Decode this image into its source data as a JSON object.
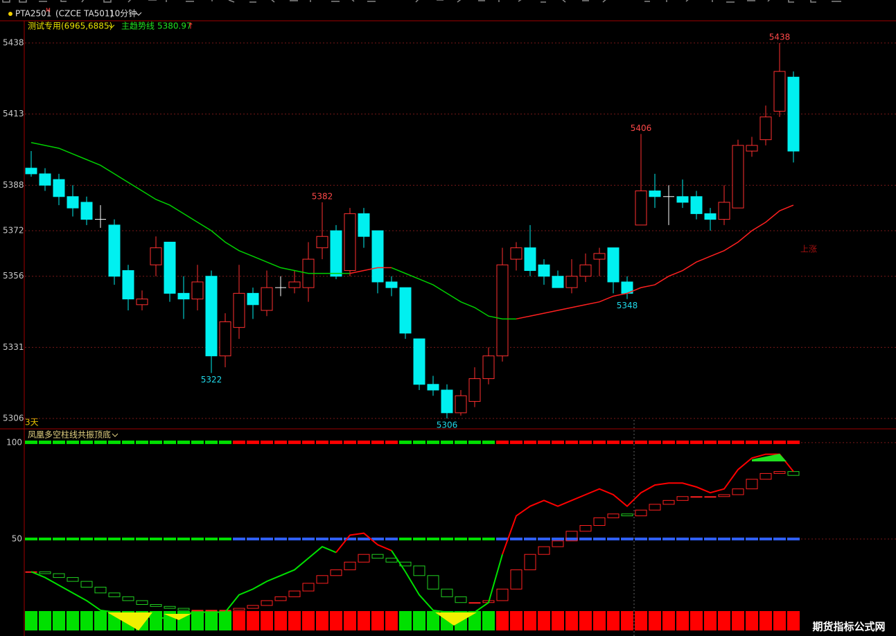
{
  "header": {
    "symbol": "PTA2501",
    "symbol_sup": "M",
    "exchange": "(CZCE TA501)",
    "period": "10分钟"
  },
  "chart_data": [
    {
      "type": "candlestick",
      "legend": {
        "indicator": "测试专用(6965,6885)",
        "trend_name": "主趋势线",
        "trend_value": 5380.97,
        "trend_arrow": "↑"
      },
      "open": [
        5394,
        5392,
        5390,
        5384,
        5382,
        5376,
        5374,
        5358,
        5346,
        5360,
        5368,
        5350,
        5348,
        5356,
        5328,
        5338,
        5350,
        5344,
        5352,
        5352,
        5352,
        5366,
        5372,
        5358,
        5378,
        5372,
        5354,
        5352,
        5334,
        5318,
        5316,
        5308,
        5312,
        5320,
        5328,
        5362,
        5366,
        5360,
        5356,
        5352,
        5356,
        5362,
        5366,
        5354,
        5374,
        5386,
        5384,
        5384,
        5384,
        5378,
        5376,
        5380,
        5400,
        5404,
        5414,
        5426
      ],
      "high": [
        5400,
        5394,
        5392,
        5388,
        5384,
        5381,
        5376,
        5360,
        5351,
        5370,
        5368,
        5356,
        5360,
        5358,
        5343,
        5360,
        5352,
        5358,
        5356,
        5358,
        5368,
        5382,
        5374,
        5380,
        5380,
        5372,
        5356,
        5352,
        5334,
        5321,
        5318,
        5316,
        5324,
        5331,
        5366,
        5368,
        5374,
        5362,
        5358,
        5362,
        5364,
        5366,
        5366,
        5356,
        5406,
        5392,
        5388,
        5390,
        5386,
        5380,
        5388,
        5404,
        5405,
        5416,
        5438,
        5428
      ],
      "low": [
        5391,
        5386,
        5381,
        5377,
        5374,
        5373,
        5353,
        5344,
        5344,
        5356,
        5347,
        5341,
        5344,
        5322,
        5324,
        5334,
        5341,
        5342,
        5349,
        5350,
        5347,
        5362,
        5355,
        5356,
        5366,
        5350,
        5349,
        5334,
        5316,
        5314,
        5306,
        5307,
        5310,
        5318,
        5326,
        5358,
        5356,
        5353,
        5352,
        5350,
        5354,
        5356,
        5350,
        5348,
        5374,
        5380,
        5374,
        5380,
        5376,
        5372,
        5374,
        5380,
        5398,
        5402,
        5412,
        5396
      ],
      "close": [
        5392,
        5388,
        5384,
        5380,
        5376,
        5376,
        5356,
        5348,
        5348,
        5366,
        5350,
        5348,
        5354,
        5328,
        5340,
        5350,
        5346,
        5352,
        5352,
        5354,
        5362,
        5370,
        5356,
        5378,
        5370,
        5354,
        5352,
        5336,
        5318,
        5316,
        5308,
        5314,
        5320,
        5328,
        5360,
        5366,
        5358,
        5356,
        5352,
        5356,
        5360,
        5364,
        5354,
        5350,
        5386,
        5384,
        5384,
        5382,
        5378,
        5376,
        5382,
        5402,
        5402,
        5412,
        5428,
        5400
      ],
      "up_color": "#ff3030",
      "down_color": "#00f0f0",
      "doji_color": "#ffffff",
      "ylim": [
        5302.6,
        5445.8
      ],
      "yticks": [
        5438,
        5413,
        5388,
        5372,
        5356,
        5331,
        5306
      ],
      "grid": true,
      "trend_line": {
        "values": [
          5403,
          5402,
          5401,
          5399,
          5397,
          5395,
          5392,
          5389,
          5386,
          5383,
          5381,
          5378,
          5375,
          5372,
          5368,
          5365,
          5363,
          5361,
          5359,
          5358,
          5357,
          5357,
          5357,
          5357,
          5358,
          5359,
          5359,
          5357,
          5355,
          5353,
          5350,
          5347,
          5345,
          5342,
          5341,
          5341,
          5342,
          5343,
          5344,
          5345,
          5346,
          5347,
          5349,
          5350,
          5352,
          5353,
          5356,
          5358,
          5361,
          5363,
          5365,
          5368,
          5372,
          5375,
          5379,
          5381
        ],
        "up_color": "#ff2020",
        "down_color": "#00d000"
      },
      "annotations": [
        {
          "value": 5438,
          "color": "#ff4848"
        },
        {
          "value": 5406,
          "color": "#ff4848"
        },
        {
          "value": 5382,
          "color": "#ff4848"
        },
        {
          "value": 5322,
          "color": "#20d8e8"
        },
        {
          "value": 5306,
          "color": "#20d8e8"
        },
        {
          "value": 5348,
          "color": "#20d8e8"
        }
      ],
      "period_note": "3天",
      "trend_note": "上涨"
    },
    {
      "type": "oscillator",
      "title": "凤凰多空柱线共振顶底",
      "ylim": [
        0,
        106.8
      ],
      "yticks": [
        100,
        50
      ],
      "line": {
        "values": [
          33,
          30,
          26,
          22,
          18,
          13,
          12,
          11,
          10,
          9,
          9,
          11,
          12,
          12,
          12,
          21,
          24,
          28,
          31,
          34,
          40,
          46,
          43,
          52,
          53,
          47,
          44,
          33,
          21,
          13,
          12,
          12,
          12,
          17,
          42,
          62,
          67,
          70,
          67,
          70,
          73,
          76,
          73,
          67,
          74,
          78,
          79,
          79,
          77,
          74,
          76,
          86,
          92,
          94,
          94,
          85
        ],
        "colors": [
          "#00e000",
          "#00e000",
          "#00e000",
          "#00e000",
          "#00e000",
          "#00e000",
          "#00e000",
          "#00e000",
          "#00e000",
          "#00e000",
          "#00e000",
          "#00e000",
          "#00e000",
          "#00e000",
          "#00e000",
          "#00e000",
          "#00e000",
          "#00e000",
          "#00e000",
          "#00e000",
          "#00e000",
          "#00e000",
          "#00e000",
          "#ff0000",
          "#ff0000",
          "#ff0000",
          "#ff0000",
          "#00e000",
          "#00e000",
          "#00e000",
          "#00e000",
          "#00e000",
          "#00e000",
          "#00e000",
          "#00e000",
          "#ff0000",
          "#ff0000",
          "#ff0000",
          "#ff0000",
          "#ff0000",
          "#ff0000",
          "#ff0000",
          "#ff0000",
          "#ff0000",
          "#ff0000",
          "#ff0000",
          "#ff0000",
          "#ff0000",
          "#ff0000",
          "#ff0000",
          "#ff0000",
          "#ff0000",
          "#ff0000",
          "#ff0000",
          "#ff0000",
          "#ff0000"
        ]
      },
      "boxes": {
        "values": [
          33,
          32,
          30,
          28,
          25,
          22,
          20,
          18,
          16,
          15,
          14,
          13,
          13,
          13,
          13,
          14,
          15.5,
          18,
          20,
          23,
          27,
          31,
          34,
          38,
          42,
          40,
          38,
          36,
          31,
          24,
          20,
          17,
          17,
          18,
          24,
          34,
          42,
          46,
          49,
          54,
          57,
          61,
          63,
          62,
          65,
          68,
          70,
          72,
          72,
          72,
          73,
          76,
          81,
          84,
          85,
          83
        ],
        "up_color": "#ff2020",
        "down_color": "#20d020"
      },
      "top_row_colors": [
        "#00e000",
        "#00e000",
        "#00e000",
        "#00e000",
        "#00e000",
        "#00e000",
        "#00e000",
        "#00e000",
        "#00e000",
        "#00e000",
        "#00e000",
        "#00e000",
        "#00e000",
        "#00e000",
        "#00e000",
        "#ff0000",
        "#ff0000",
        "#ff0000",
        "#ff0000",
        "#ff0000",
        "#ff0000",
        "#ff0000",
        "#ff0000",
        "#ff0000",
        "#ff0000",
        "#ff0000",
        "#ff0000",
        "#00e000",
        "#00e000",
        "#00e000",
        "#00e000",
        "#00e000",
        "#00e000",
        "#00e000",
        "#ff0000",
        "#ff0000",
        "#ff0000",
        "#ff0000",
        "#ff0000",
        "#ff0000",
        "#ff0000",
        "#ff0000",
        "#ff0000",
        "#ff0000",
        "#ff0000",
        "#ff0000",
        "#ff0000",
        "#ff0000",
        "#ff0000",
        "#ff0000",
        "#ff0000",
        "#ff0000",
        "#ff0000",
        "#ff0000",
        "#ff0000",
        "#ff0000"
      ],
      "mid_row_colors": [
        "#00e000",
        "#00e000",
        "#00e000",
        "#00e000",
        "#00e000",
        "#00e000",
        "#00e000",
        "#00e000",
        "#00e000",
        "#00e000",
        "#00e000",
        "#00e000",
        "#00e000",
        "#00e000",
        "#00e000",
        "#3060ff",
        "#3060ff",
        "#3060ff",
        "#3060ff",
        "#3060ff",
        "#3060ff",
        "#3060ff",
        "#3060ff",
        "#3060ff",
        "#3060ff",
        "#3060ff",
        "#3060ff",
        "#00e000",
        "#00e000",
        "#00e000",
        "#00e000",
        "#00e000",
        "#00e000",
        "#00e000",
        "#3060ff",
        "#3060ff",
        "#3060ff",
        "#3060ff",
        "#3060ff",
        "#3060ff",
        "#3060ff",
        "#3060ff",
        "#3060ff",
        "#3060ff",
        "#3060ff",
        "#3060ff",
        "#3060ff",
        "#3060ff",
        "#3060ff",
        "#3060ff",
        "#3060ff",
        "#3060ff",
        "#3060ff",
        "#3060ff",
        "#3060ff",
        "#3060ff"
      ],
      "bottom_row_colors": [
        "#00e000",
        "#00e000",
        "#00e000",
        "#00e000",
        "#00e000",
        "#00e000",
        "#00e000",
        "#00e000",
        "#00e000",
        "#00e000",
        "#00e000",
        "#00e000",
        "#00e000",
        "#00e000",
        "#00e000",
        "#ff0000",
        "#ff0000",
        "#ff0000",
        "#ff0000",
        "#ff0000",
        "#ff0000",
        "#ff0000",
        "#ff0000",
        "#ff0000",
        "#ff0000",
        "#ff0000",
        "#ff0000",
        "#00e000",
        "#00e000",
        "#00e000",
        "#00e000",
        "#00e000",
        "#00e000",
        "#00e000",
        "#ff0000",
        "#ff0000",
        "#ff0000",
        "#ff0000",
        "#ff0000",
        "#ff0000",
        "#ff0000",
        "#ff0000",
        "#ff0000",
        "#ff0000",
        "#ff0000",
        "#ff0000",
        "#ff0000",
        "#ff0000",
        "#ff0000",
        "#ff0000",
        "#ff0000",
        "#ff0000",
        "#ff0000",
        "#ff0000",
        "#ff0000",
        "#ff0000"
      ]
    }
  ],
  "watermark": "期货指标公式网"
}
